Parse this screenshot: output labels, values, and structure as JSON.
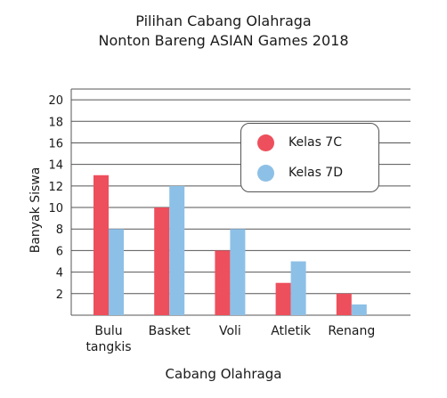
{
  "chart_data": {
    "type": "bar",
    "title": [
      "Pilihan Cabang Olahraga",
      "Nonton Bareng ASIAN Games 2018"
    ],
    "xlabel": "Cabang Olahraga",
    "ylabel": "Banyak Siswa",
    "categories": [
      [
        "Bulu",
        "tangkis"
      ],
      [
        "Basket"
      ],
      [
        "Voli"
      ],
      [
        "Atletik"
      ],
      [
        "Renang"
      ]
    ],
    "series": [
      {
        "name": "Kelas 7C",
        "color": "#ee4f5c",
        "values": [
          13,
          10,
          6,
          3,
          2
        ]
      },
      {
        "name": "Kelas 7D",
        "color": "#8dc0e6",
        "values": [
          8,
          12,
          8,
          5,
          1
        ]
      }
    ],
    "ylim": [
      0,
      20
    ],
    "yticks": [
      2,
      4,
      6,
      8,
      10,
      12,
      14,
      16,
      18,
      20
    ],
    "grid": true,
    "legend_position": "top-right"
  }
}
